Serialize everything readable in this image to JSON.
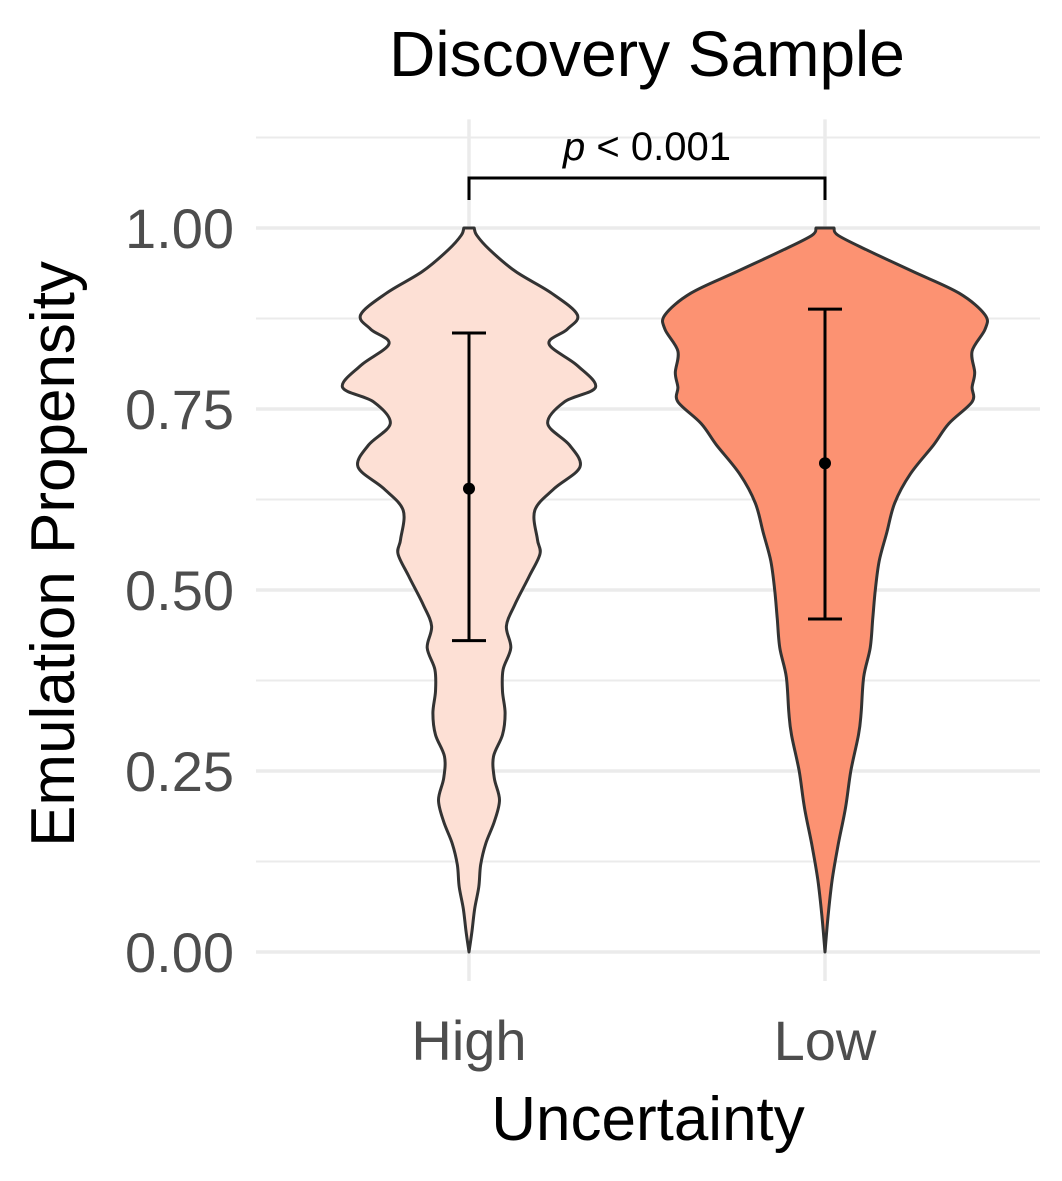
{
  "chart_data": {
    "type": "violin",
    "title": "Discovery Sample",
    "xlabel": "Uncertainty",
    "ylabel": "Emulation Propensity",
    "categories": [
      "High",
      "Low"
    ],
    "ylim": [
      -0.04,
      1.15
    ],
    "yticks": [
      {
        "value": 0.0,
        "label": "0.00"
      },
      {
        "value": 0.25,
        "label": "0.25"
      },
      {
        "value": 0.5,
        "label": "0.50"
      },
      {
        "value": 0.75,
        "label": "0.75"
      },
      {
        "value": 1.0,
        "label": "1.00"
      }
    ],
    "grid": true,
    "series": [
      {
        "category": "High",
        "fill": "#fde0d5",
        "mean": 0.64,
        "error_low": 0.43,
        "error_high": 0.855,
        "density_profile": [
          [
            0.0,
            0.0
          ],
          [
            0.03,
            0.012
          ],
          [
            0.06,
            0.022
          ],
          [
            0.09,
            0.038
          ],
          [
            0.12,
            0.045
          ],
          [
            0.15,
            0.065
          ],
          [
            0.18,
            0.098
          ],
          [
            0.21,
            0.118
          ],
          [
            0.24,
            0.098
          ],
          [
            0.27,
            0.095
          ],
          [
            0.3,
            0.13
          ],
          [
            0.33,
            0.14
          ],
          [
            0.36,
            0.13
          ],
          [
            0.39,
            0.132
          ],
          [
            0.42,
            0.162
          ],
          [
            0.45,
            0.145
          ],
          [
            0.48,
            0.178
          ],
          [
            0.52,
            0.235
          ],
          [
            0.55,
            0.275
          ],
          [
            0.57,
            0.265
          ],
          [
            0.61,
            0.255
          ],
          [
            0.64,
            0.33
          ],
          [
            0.67,
            0.43
          ],
          [
            0.7,
            0.39
          ],
          [
            0.73,
            0.305
          ],
          [
            0.76,
            0.37
          ],
          [
            0.78,
            0.49
          ],
          [
            0.81,
            0.42
          ],
          [
            0.84,
            0.31
          ],
          [
            0.86,
            0.38
          ],
          [
            0.88,
            0.42
          ],
          [
            0.91,
            0.32
          ],
          [
            0.94,
            0.18
          ],
          [
            0.97,
            0.08
          ],
          [
            0.99,
            0.03
          ],
          [
            1.0,
            0.02
          ]
        ]
      },
      {
        "category": "Low",
        "fill": "#fc9272",
        "mean": 0.675,
        "error_low": 0.46,
        "error_high": 0.888,
        "density_profile": [
          [
            0.0,
            0.0
          ],
          [
            0.05,
            0.012
          ],
          [
            0.1,
            0.028
          ],
          [
            0.15,
            0.052
          ],
          [
            0.2,
            0.08
          ],
          [
            0.25,
            0.1
          ],
          [
            0.3,
            0.13
          ],
          [
            0.33,
            0.14
          ],
          [
            0.38,
            0.15
          ],
          [
            0.42,
            0.175
          ],
          [
            0.46,
            0.185
          ],
          [
            0.5,
            0.195
          ],
          [
            0.54,
            0.21
          ],
          [
            0.58,
            0.24
          ],
          [
            0.62,
            0.27
          ],
          [
            0.66,
            0.33
          ],
          [
            0.7,
            0.42
          ],
          [
            0.73,
            0.48
          ],
          [
            0.76,
            0.57
          ],
          [
            0.78,
            0.57
          ],
          [
            0.8,
            0.58
          ],
          [
            0.83,
            0.57
          ],
          [
            0.86,
            0.62
          ],
          [
            0.88,
            0.62
          ],
          [
            0.91,
            0.52
          ],
          [
            0.94,
            0.34
          ],
          [
            0.97,
            0.16
          ],
          [
            0.99,
            0.05
          ],
          [
            1.0,
            0.035
          ]
        ]
      }
    ],
    "annotation": {
      "p_symbol": "p",
      "p_text": " < 0.001",
      "from": "High",
      "to": "Low"
    }
  }
}
